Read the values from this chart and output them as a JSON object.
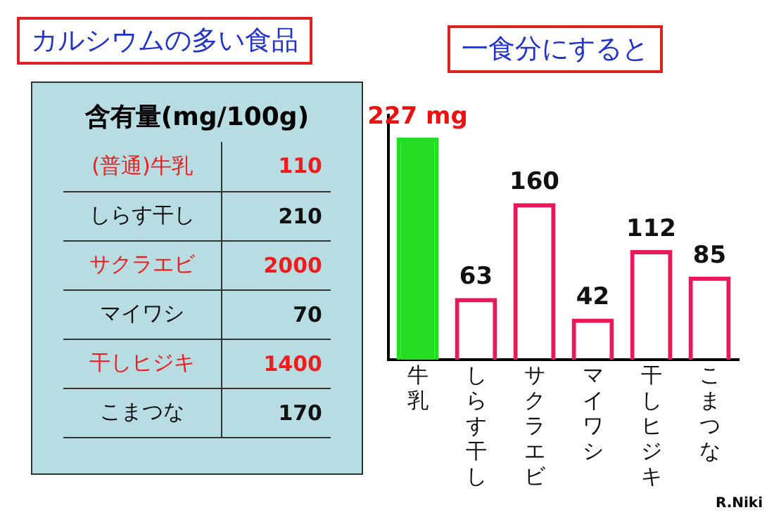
{
  "chart_data": [
    {
      "type": "other",
      "title": "カルシウムの多い食品",
      "subtitle": "含有量(mg/100g)",
      "categories": [
        "(普通)牛乳",
        "しらす干し",
        "サクラエビ",
        "マイワシ",
        "干しヒジキ",
        "こまつな"
      ],
      "values": [
        110,
        210,
        2000,
        70,
        1400,
        170
      ],
      "data_labels": true
    },
    {
      "type": "bar",
      "title": "一食分にすると",
      "categories": [
        "牛乳",
        "しらす干し",
        "サクラエビ",
        "マイワシ",
        "干しヒジキ",
        "こまつな"
      ],
      "values": [
        227,
        63,
        160,
        42,
        112,
        85
      ],
      "colors": [
        "#22dd22",
        "#e8185a",
        "#e8185a",
        "#e8185a",
        "#e8185a",
        "#e8185a"
      ],
      "value_labels": [
        "227 mg",
        "63",
        "160",
        "42",
        "112",
        "85"
      ],
      "tick_labels": "x",
      "grid": false,
      "legend": false,
      "annotations": [
        "R.Niki"
      ]
    }
  ]
}
